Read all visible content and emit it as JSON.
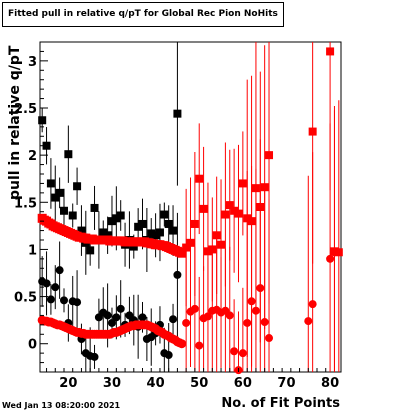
{
  "chart_data": {
    "type": "scatter",
    "title": "Fitted pull in relative q/pT for Global Rec Pion NoHits",
    "xlabel": "No. of Fit Points",
    "ylabel": "pull in relative q/pT",
    "xlim": [
      13.5,
      82.5
    ],
    "ylim": [
      -0.3,
      3.2
    ],
    "xticks": [
      20,
      30,
      40,
      50,
      60,
      70,
      80
    ],
    "yticks": [
      0,
      0.5,
      1,
      1.5,
      2,
      2.5,
      3
    ],
    "grid": false,
    "legend": "none",
    "series": [
      {
        "color": "#000000",
        "marker": "square",
        "x": [
          14,
          15,
          16,
          17,
          18,
          19,
          20,
          21,
          22,
          23,
          24,
          25,
          26,
          27,
          28,
          29,
          30,
          31,
          32,
          33,
          34,
          35,
          36,
          37,
          38,
          39,
          40,
          41,
          42,
          43,
          44,
          45
        ],
        "y": [
          2.37,
          2.1,
          1.7,
          1.55,
          1.6,
          1.41,
          2.01,
          1.36,
          1.67,
          1.2,
          1.07,
          0.99,
          1.44,
          1.1,
          1.18,
          1.15,
          1.3,
          1.33,
          1.36,
          1.05,
          1.1,
          1.03,
          1.24,
          1.27,
          1.1,
          1.17,
          1.15,
          1.18,
          1.37,
          1.27,
          1.2,
          2.44
        ]
      },
      {
        "color": "#000000",
        "marker": "circle",
        "x": [
          14,
          15,
          16,
          17,
          18,
          19,
          20,
          21,
          22,
          23,
          24,
          25,
          26,
          27,
          28,
          29,
          30,
          31,
          32,
          33,
          34,
          35,
          36,
          37,
          38,
          39,
          40,
          41,
          42,
          43,
          44,
          45
        ],
        "y": [
          0.66,
          0.64,
          0.47,
          0.6,
          0.78,
          0.46,
          0.22,
          0.45,
          0.44,
          0.05,
          -0.1,
          -0.13,
          -0.14,
          0.28,
          0.33,
          0.3,
          0.22,
          0.28,
          0.37,
          0.2,
          0.3,
          0.25,
          0.18,
          0.28,
          0.05,
          0.07,
          0.11,
          0.2,
          -0.1,
          -0.12,
          0.26,
          0.73
        ]
      },
      {
        "color": "#ff0000",
        "marker": "square",
        "x": [
          14,
          14.5,
          15,
          15.5,
          16,
          16.5,
          17,
          17.5,
          18,
          18.5,
          19,
          19.5,
          20,
          20.5,
          21,
          21.5,
          22,
          22.5,
          23,
          23.5,
          24,
          24.5,
          25,
          25.5,
          26,
          26.5,
          27,
          27.5,
          28,
          28.5,
          29,
          29.5,
          30,
          30.5,
          31,
          31.5,
          32,
          32.5,
          33,
          33.5,
          34,
          34.5,
          35,
          35.5,
          36,
          36.5,
          37,
          37.5,
          38,
          38.5,
          39,
          39.5,
          40,
          40.5,
          41,
          41.5,
          42,
          42.5,
          43,
          43.5,
          44,
          44.5,
          45,
          45.5,
          46
        ],
        "y": [
          1.33,
          1.31,
          1.3,
          1.28,
          1.27,
          1.25,
          1.24,
          1.23,
          1.22,
          1.21,
          1.2,
          1.19,
          1.18,
          1.17,
          1.16,
          1.15,
          1.14,
          1.13,
          1.13,
          1.12,
          1.12,
          1.11,
          1.11,
          1.11,
          1.1,
          1.1,
          1.1,
          1.1,
          1.1,
          1.1,
          1.1,
          1.09,
          1.09,
          1.09,
          1.09,
          1.09,
          1.09,
          1.09,
          1.08,
          1.08,
          1.08,
          1.08,
          1.08,
          1.08,
          1.08,
          1.08,
          1.08,
          1.08,
          1.07,
          1.07,
          1.06,
          1.06,
          1.05,
          1.05,
          1.05,
          1.04,
          1.04,
          1.03,
          1.02,
          1.01,
          1.0,
          0.99,
          0.98,
          0.97,
          0.96
        ]
      },
      {
        "color": "#ff0000",
        "marker": "circle",
        "x": [
          14,
          14.5,
          15,
          15.5,
          16,
          16.5,
          17,
          17.5,
          18,
          18.5,
          19,
          19.5,
          20,
          20.5,
          21,
          21.5,
          22,
          22.5,
          23,
          23.5,
          24,
          24.5,
          25,
          25.5,
          26,
          26.5,
          27,
          27.5,
          28,
          28.5,
          29,
          29.5,
          30,
          30.5,
          31,
          31.5,
          32,
          32.5,
          33,
          33.5,
          34,
          34.5,
          35,
          35.5,
          36,
          36.5,
          37,
          37.5,
          38,
          38.5,
          39,
          39.5,
          40,
          40.5,
          41,
          41.5,
          42,
          42.5,
          43,
          43.5,
          44,
          44.5,
          45,
          45.5,
          46
        ],
        "y": [
          0.25,
          0.24,
          0.24,
          0.23,
          0.23,
          0.22,
          0.21,
          0.2,
          0.2,
          0.19,
          0.18,
          0.17,
          0.16,
          0.15,
          0.14,
          0.13,
          0.12,
          0.12,
          0.11,
          0.11,
          0.1,
          0.1,
          0.1,
          0.1,
          0.1,
          0.1,
          0.1,
          0.1,
          0.1,
          0.1,
          0.1,
          0.1,
          0.11,
          0.12,
          0.12,
          0.13,
          0.14,
          0.15,
          0.16,
          0.17,
          0.18,
          0.19,
          0.19,
          0.2,
          0.2,
          0.2,
          0.2,
          0.2,
          0.2,
          0.19,
          0.18,
          0.17,
          0.16,
          0.14,
          0.13,
          0.12,
          0.1,
          0.09,
          0.08,
          0.06,
          0.05,
          0.04,
          0.02,
          0.01,
          0.0
        ]
      },
      {
        "color": "#ff0000",
        "marker": "square",
        "x": [
          47,
          48,
          49,
          50,
          51,
          52,
          53,
          54,
          55,
          56,
          57,
          58,
          59,
          60,
          61,
          62,
          63,
          64,
          65,
          66,
          76,
          80,
          81,
          82
        ],
        "y": [
          1.02,
          1.07,
          1.27,
          1.75,
          1.43,
          0.98,
          1.0,
          1.15,
          1.05,
          1.37,
          1.47,
          1.41,
          1.38,
          1.7,
          1.33,
          1.3,
          1.65,
          1.45,
          1.66,
          2.0,
          2.25,
          3.1,
          0.98,
          0.97
        ]
      },
      {
        "color": "#ff0000",
        "marker": "circle",
        "x": [
          47,
          48,
          49,
          50,
          51,
          52,
          53,
          54,
          55,
          56,
          57,
          58,
          59,
          60,
          61,
          62,
          63,
          64,
          65,
          66,
          75,
          76,
          80,
          81
        ],
        "y": [
          0.22,
          0.34,
          0.37,
          -0.02,
          0.27,
          0.29,
          0.35,
          0.36,
          0.33,
          0.35,
          0.3,
          -0.08,
          -0.28,
          -0.1,
          0.22,
          0.45,
          0.35,
          0.59,
          0.23,
          0.06,
          0.24,
          0.42,
          0.9,
          0.97
        ]
      }
    ]
  },
  "frame": {
    "date_stamp": "Wed Jan 13 08:20:00 2021"
  }
}
